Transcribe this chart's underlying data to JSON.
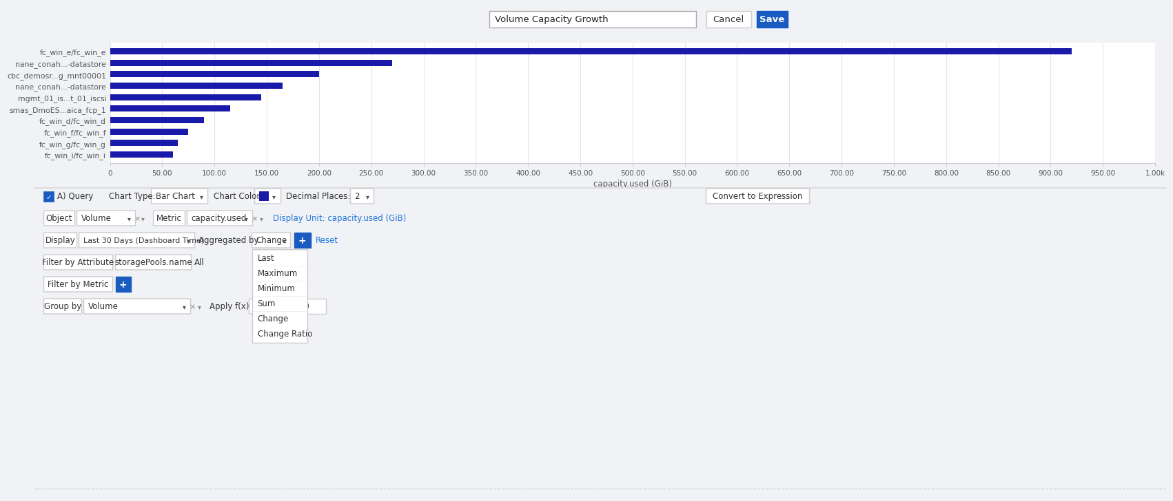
{
  "title": "Volume Capacity Growth",
  "bar_labels": [
    "fc_win_e/fc_win_e",
    "nane_conah...-datastore",
    "cbc_demosr...g_mnt00001",
    "nane_conah...-datastore",
    "mgmt_01_is...t_01_iscsi",
    "smas_DmoES...aica_fcp_1",
    "fc_win_d/fc_win_d",
    "fc_win_f/fc_win_f",
    "fc_win_g/fc_win_g",
    "fc_win_i/fc_win_i"
  ],
  "bar_values": [
    920,
    270,
    200,
    165,
    145,
    115,
    90,
    75,
    65,
    60
  ],
  "bar_color": "#1a1aaa",
  "xlabel": "capacity.used (GiB)",
  "x_ticks": [
    0,
    50,
    100,
    150,
    200,
    250,
    300,
    350,
    400,
    450,
    500,
    550,
    600,
    650,
    700,
    750,
    800,
    850,
    900,
    950,
    1000
  ],
  "x_max": 1000,
  "chart_bg": "#ffffff",
  "outer_bg": "#f0f2f5",
  "panel_bg": "#f5f6f7",
  "panel_border": "#e0e0e0",
  "dropdown_items": [
    "Last",
    "Maximum",
    "Minimum",
    "Sum",
    "Change",
    "Change Ratio"
  ],
  "ui_elements": {
    "query_label": "A) Query",
    "chart_type_label": "Chart Type:",
    "chart_type_value": "Bar Chart",
    "chart_color_label": "Chart Color:",
    "decimal_places_label": "Decimal Places:",
    "decimal_places_value": "2",
    "object_value": "Volume",
    "metric_value": "capacity.used",
    "display_unit_label": "Display Unit: capacity.used (GiB)",
    "display_value": "Last 30 Days (Dashboard Time)",
    "aggregated_by_label": "Aggregated by",
    "aggregated_by_value": "Change",
    "reset_label": "Reset",
    "filter_attr_value": "storagePools.name",
    "filter_attr_all": "All",
    "group_by_value": "Volume",
    "apply_fx_label": "Apply f(x)",
    "apply_fx_value": "10",
    "cancel_button": "Cancel",
    "save_button": "Save",
    "convert_button": "Convert to Expression"
  }
}
